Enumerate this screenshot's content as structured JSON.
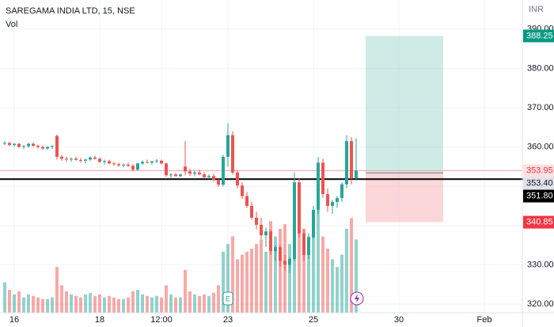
{
  "chart_data": {
    "type": "candlestick",
    "title": "SAREGAMA INDIA LTD, 15, NSE",
    "subtitle": "Vol",
    "currency": "INR",
    "up_color": "#26a69a",
    "down_color": "#ef5350",
    "grid": true,
    "xlim": [
      -1,
      109
    ],
    "xticks": [
      {
        "value": 2,
        "label": "16"
      },
      {
        "value": 20,
        "label": "18"
      },
      {
        "value": 33,
        "label": "12:00"
      },
      {
        "value": 47,
        "label": "23"
      },
      {
        "value": 65,
        "label": "25"
      },
      {
        "value": 83,
        "label": "30"
      },
      {
        "value": 101,
        "label": "Feb"
      }
    ],
    "ylim": [
      317.8,
      397.4
    ],
    "yticks": [
      {
        "value": 320,
        "label": "320.00"
      },
      {
        "value": 330,
        "label": "330.00"
      },
      {
        "value": 340,
        "label": "340.00"
      },
      {
        "value": 350,
        "label": "350.00"
      },
      {
        "value": 360,
        "label": "360.00"
      },
      {
        "value": 370,
        "label": "370.00"
      },
      {
        "value": 380,
        "label": "380.00"
      },
      {
        "value": 390,
        "label": "390.00"
      }
    ],
    "open": [
      361,
      361,
      360.5,
      360.8,
      360,
      360.2,
      360.8,
      360.3,
      360,
      359.6,
      360,
      362.8,
      357.5,
      357,
      356.8,
      357,
      356.7,
      356.5,
      356.8,
      357.3,
      357,
      356.2,
      356.4,
      355.8,
      355.6,
      355.3,
      355.5,
      355.2,
      354.2,
      355.8,
      356.2,
      356,
      356.3,
      356.5,
      355.8,
      352.8,
      353,
      352.6,
      355,
      353.8,
      353.2,
      353.5,
      353,
      352.3,
      352.6,
      351.6,
      350.4,
      357.5,
      363,
      353.5,
      350.2,
      347.5,
      345,
      342,
      340.2,
      337.5,
      338.5,
      333.5,
      334.5,
      331,
      330,
      331.5,
      351,
      338,
      332.5,
      337,
      344,
      356,
      348,
      345,
      346,
      347,
      350.5,
      361.5,
      352
    ],
    "high": [
      361.5,
      361.3,
      361,
      361,
      360.5,
      361,
      361.2,
      360.6,
      360.4,
      360.2,
      360.5,
      363.2,
      358,
      357.5,
      357.3,
      357.5,
      357.2,
      357,
      357.6,
      357.8,
      357.3,
      356.8,
      356.7,
      356.2,
      356,
      355.8,
      356,
      355.6,
      356,
      356.6,
      356.8,
      356.5,
      356.9,
      356.8,
      356,
      353.3,
      353.4,
      353.2,
      361.5,
      354.5,
      354,
      354.2,
      353.6,
      353,
      353.2,
      352,
      358,
      366,
      364,
      354,
      351,
      348.5,
      346,
      343.5,
      342,
      339.5,
      339,
      335,
      335,
      332.5,
      332,
      353.5,
      352,
      339,
      338,
      345,
      357.5,
      357,
      349.5,
      346.5,
      347.5,
      351,
      363,
      362.5,
      362.2
    ],
    "low": [
      360.5,
      360.2,
      360,
      359.8,
      359.5,
      359.8,
      360,
      359.6,
      359.3,
      359.2,
      359.5,
      356.8,
      356.5,
      356.3,
      356.2,
      356.5,
      356,
      355.8,
      356.4,
      356.8,
      356,
      355.5,
      355.6,
      355.2,
      355,
      354.8,
      354.9,
      353.8,
      354,
      355.4,
      355.8,
      355.5,
      355.9,
      355.6,
      352.4,
      352.2,
      352.4,
      352.3,
      352.8,
      352.6,
      352.5,
      352.8,
      352,
      351.8,
      351.2,
      349.8,
      350,
      355,
      353,
      349.5,
      346.8,
      344.5,
      341.5,
      339,
      336.5,
      334.5,
      332.5,
      331,
      329.5,
      328.5,
      328,
      331,
      337,
      331,
      331.5,
      336.5,
      343,
      347,
      343.5,
      343,
      344.5,
      346,
      349.5,
      350.5,
      351.5
    ],
    "close": [
      361,
      360.5,
      360.8,
      360,
      360.2,
      360.8,
      360.3,
      360,
      359.6,
      360,
      360.2,
      357.5,
      357,
      356.8,
      357,
      356.7,
      356.5,
      356.8,
      357.3,
      357,
      356.2,
      356.4,
      355.8,
      355.6,
      355.3,
      355.5,
      355.2,
      354.2,
      355.8,
      356.2,
      356,
      356.3,
      356.5,
      355.8,
      352.8,
      353,
      352.6,
      353,
      353.8,
      353.2,
      353.5,
      353,
      352.3,
      352.6,
      351.6,
      350.4,
      357.5,
      363,
      353.5,
      350.2,
      347.5,
      345,
      342,
      340.2,
      337.5,
      338.5,
      333.5,
      334.5,
      331,
      330,
      331.5,
      351,
      338,
      332.5,
      337,
      344,
      356,
      348,
      345,
      346,
      347,
      350.5,
      361.5,
      352,
      353.95
    ],
    "volume": [
      20,
      15,
      12,
      14,
      10,
      12,
      11,
      10,
      9,
      9,
      10,
      30,
      18,
      14,
      12,
      11,
      10,
      12,
      13,
      11,
      12,
      10,
      11,
      10,
      9,
      9,
      10,
      14,
      15,
      12,
      11,
      10,
      11,
      10,
      18,
      12,
      10,
      10,
      28,
      14,
      12,
      11,
      12,
      11,
      13,
      18,
      40,
      45,
      50,
      35,
      38,
      40,
      42,
      45,
      48,
      40,
      60,
      50,
      55,
      58,
      45,
      70,
      65,
      55,
      50,
      55,
      68,
      50,
      42,
      35,
      30,
      38,
      55,
      62,
      48
    ],
    "last_price": 353.95,
    "horizontal_line": {
      "value": 351.8,
      "label": "351.80"
    },
    "position": {
      "target": 388.25,
      "entry": {
        "value": 353.4,
        "label": "353.40"
      },
      "stop": 340.85
    },
    "earnings_marker": "E"
  }
}
